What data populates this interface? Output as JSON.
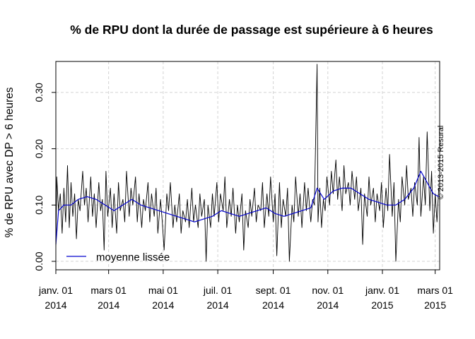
{
  "chart_data": {
    "type": "line",
    "title": "% de RPU dont la durée de passage est supérieure à 6 heures",
    "xlabel": "",
    "ylabel": "% de RPU avec DP > 6 heures",
    "x_range": [
      "2014-01-01",
      "2015-03-06"
    ],
    "ylim": [
      -0.015,
      0.355
    ],
    "y_ticks": [
      0.0,
      0.1,
      0.2,
      0.3
    ],
    "y_tick_labels": [
      "0.00",
      "0.10",
      "0.20",
      "0.30"
    ],
    "x_ticks": [
      {
        "date": "2014-01-01",
        "line1": "janv. 01",
        "line2": "2014"
      },
      {
        "date": "2014-03-01",
        "line1": "mars 01",
        "line2": "2014"
      },
      {
        "date": "2014-05-01",
        "line1": "mai 01",
        "line2": "2014"
      },
      {
        "date": "2014-07-01",
        "line1": "juil. 01",
        "line2": "2014"
      },
      {
        "date": "2014-09-01",
        "line1": "sept. 01",
        "line2": "2014"
      },
      {
        "date": "2014-11-01",
        "line1": "nov. 01",
        "line2": "2014"
      },
      {
        "date": "2015-01-01",
        "line1": "janv. 01",
        "line2": "2015"
      },
      {
        "date": "2015-03-01",
        "line1": "mars 01",
        "line2": "2015"
      }
    ],
    "grid": true,
    "legend_position": "bottom-left",
    "copyright": "© 2013-2015 Resural",
    "series": [
      {
        "key": "raw",
        "color": "#000000",
        "points": [
          [
            "2014-01-01",
            0.02
          ],
          [
            "2014-01-02",
            0.15
          ],
          [
            "2014-01-04",
            0.09
          ],
          [
            "2014-01-06",
            0.12
          ],
          [
            "2014-01-08",
            0.05
          ],
          [
            "2014-01-10",
            0.13
          ],
          [
            "2014-01-12",
            0.07
          ],
          [
            "2014-01-14",
            0.17
          ],
          [
            "2014-01-16",
            0.06
          ],
          [
            "2014-01-18",
            0.14
          ],
          [
            "2014-01-20",
            0.08
          ],
          [
            "2014-01-22",
            0.12
          ],
          [
            "2014-01-24",
            0.04
          ],
          [
            "2014-01-26",
            0.11
          ],
          [
            "2014-01-28",
            0.09
          ],
          [
            "2014-01-31",
            0.16
          ],
          [
            "2014-02-02",
            0.1
          ],
          [
            "2014-02-04",
            0.13
          ],
          [
            "2014-02-06",
            0.07
          ],
          [
            "2014-02-09",
            0.15
          ],
          [
            "2014-02-11",
            0.08
          ],
          [
            "2014-02-13",
            0.12
          ],
          [
            "2014-02-15",
            0.06
          ],
          [
            "2014-02-18",
            0.14
          ],
          [
            "2014-02-20",
            0.09
          ],
          [
            "2014-02-22",
            0.11
          ],
          [
            "2014-02-24",
            0.02
          ],
          [
            "2014-02-26",
            0.16
          ],
          [
            "2014-02-28",
            0.08
          ],
          [
            "2014-03-03",
            0.13
          ],
          [
            "2014-03-05",
            0.06
          ],
          [
            "2014-03-07",
            0.12
          ],
          [
            "2014-03-10",
            0.05
          ],
          [
            "2014-03-12",
            0.14
          ],
          [
            "2014-03-14",
            0.09
          ],
          [
            "2014-03-17",
            0.11
          ],
          [
            "2014-03-19",
            0.07
          ],
          [
            "2014-03-21",
            0.16
          ],
          [
            "2014-03-24",
            0.08
          ],
          [
            "2014-03-26",
            0.13
          ],
          [
            "2014-03-28",
            0.1
          ],
          [
            "2014-03-31",
            0.15
          ],
          [
            "2014-04-02",
            0.07
          ],
          [
            "2014-04-04",
            0.12
          ],
          [
            "2014-04-07",
            0.06
          ],
          [
            "2014-04-09",
            0.11
          ],
          [
            "2014-04-11",
            0.09
          ],
          [
            "2014-04-14",
            0.14
          ],
          [
            "2014-04-16",
            0.07
          ],
          [
            "2014-04-18",
            0.12
          ],
          [
            "2014-04-21",
            0.08
          ],
          [
            "2014-04-23",
            0.13
          ],
          [
            "2014-04-25",
            0.05
          ],
          [
            "2014-04-28",
            0.11
          ],
          [
            "2014-04-30",
            0.07
          ],
          [
            "2014-05-02",
            0.02
          ],
          [
            "2014-05-05",
            0.12
          ],
          [
            "2014-05-07",
            0.09
          ],
          [
            "2014-05-09",
            0.14
          ],
          [
            "2014-05-12",
            0.06
          ],
          [
            "2014-05-14",
            0.1
          ],
          [
            "2014-05-16",
            0.07
          ],
          [
            "2014-05-19",
            0.12
          ],
          [
            "2014-05-21",
            0.05
          ],
          [
            "2014-05-23",
            0.09
          ],
          [
            "2014-05-26",
            0.07
          ],
          [
            "2014-05-28",
            0.11
          ],
          [
            "2014-05-30",
            0.06
          ],
          [
            "2014-06-02",
            0.13
          ],
          [
            "2014-06-04",
            0.07
          ],
          [
            "2014-06-06",
            0.1
          ],
          [
            "2014-06-09",
            0.06
          ],
          [
            "2014-06-11",
            0.12
          ],
          [
            "2014-06-13",
            0.08
          ],
          [
            "2014-06-16",
            0.11
          ],
          [
            "2014-06-18",
            0.0
          ],
          [
            "2014-06-20",
            0.1
          ],
          [
            "2014-06-23",
            0.06
          ],
          [
            "2014-06-25",
            0.12
          ],
          [
            "2014-06-27",
            0.08
          ],
          [
            "2014-06-30",
            0.14
          ],
          [
            "2014-07-02",
            0.07
          ],
          [
            "2014-07-04",
            0.12
          ],
          [
            "2014-07-07",
            0.09
          ],
          [
            "2014-07-09",
            0.15
          ],
          [
            "2014-07-11",
            0.06
          ],
          [
            "2014-07-14",
            0.11
          ],
          [
            "2014-07-16",
            0.08
          ],
          [
            "2014-07-18",
            0.13
          ],
          [
            "2014-07-21",
            0.05
          ],
          [
            "2014-07-23",
            0.1
          ],
          [
            "2014-07-25",
            0.07
          ],
          [
            "2014-07-28",
            0.12
          ],
          [
            "2014-07-30",
            0.02
          ],
          [
            "2014-08-01",
            0.09
          ],
          [
            "2014-08-04",
            0.06
          ],
          [
            "2014-08-06",
            0.11
          ],
          [
            "2014-08-08",
            0.08
          ],
          [
            "2014-08-11",
            0.13
          ],
          [
            "2014-08-13",
            0.07
          ],
          [
            "2014-08-15",
            0.1
          ],
          [
            "2014-08-18",
            0.09
          ],
          [
            "2014-08-20",
            0.14
          ],
          [
            "2014-08-22",
            0.06
          ],
          [
            "2014-08-25",
            0.12
          ],
          [
            "2014-08-27",
            0.08
          ],
          [
            "2014-08-29",
            0.15
          ],
          [
            "2014-09-01",
            0.07
          ],
          [
            "2014-09-03",
            0.12
          ],
          [
            "2014-09-05",
            0.01
          ],
          [
            "2014-09-08",
            0.14
          ],
          [
            "2014-09-10",
            0.06
          ],
          [
            "2014-09-12",
            0.11
          ],
          [
            "2014-09-15",
            0.08
          ],
          [
            "2014-09-17",
            0.13
          ],
          [
            "2014-09-19",
            0.0
          ],
          [
            "2014-09-22",
            0.1
          ],
          [
            "2014-09-24",
            0.07
          ],
          [
            "2014-09-26",
            0.15
          ],
          [
            "2014-09-29",
            0.08
          ],
          [
            "2014-10-01",
            0.12
          ],
          [
            "2014-10-03",
            0.06
          ],
          [
            "2014-10-06",
            0.14
          ],
          [
            "2014-10-08",
            0.09
          ],
          [
            "2014-10-10",
            0.13
          ],
          [
            "2014-10-13",
            0.07
          ],
          [
            "2014-10-15",
            0.11
          ],
          [
            "2014-10-17",
            0.1
          ],
          [
            "2014-10-20",
            0.35
          ],
          [
            "2014-10-21",
            0.07
          ],
          [
            "2014-10-23",
            0.13
          ],
          [
            "2014-10-25",
            0.06
          ],
          [
            "2014-10-27",
            0.11
          ],
          [
            "2014-10-29",
            0.09
          ],
          [
            "2014-10-31",
            0.15
          ],
          [
            "2014-11-03",
            0.1
          ],
          [
            "2014-11-05",
            0.16
          ],
          [
            "2014-11-07",
            0.12
          ],
          [
            "2014-11-10",
            0.18
          ],
          [
            "2014-11-12",
            0.11
          ],
          [
            "2014-11-14",
            0.15
          ],
          [
            "2014-11-17",
            0.09
          ],
          [
            "2014-11-19",
            0.17
          ],
          [
            "2014-11-21",
            0.12
          ],
          [
            "2014-11-24",
            0.14
          ],
          [
            "2014-11-26",
            0.1
          ],
          [
            "2014-11-28",
            0.16
          ],
          [
            "2014-12-01",
            0.11
          ],
          [
            "2014-12-03",
            0.15
          ],
          [
            "2014-12-05",
            0.09
          ],
          [
            "2014-12-08",
            0.13
          ],
          [
            "2014-12-10",
            0.03
          ],
          [
            "2014-12-12",
            0.12
          ],
          [
            "2014-12-15",
            0.08
          ],
          [
            "2014-12-17",
            0.15
          ],
          [
            "2014-12-19",
            0.1
          ],
          [
            "2014-12-22",
            0.13
          ],
          [
            "2014-12-24",
            0.07
          ],
          [
            "2014-12-26",
            0.12
          ],
          [
            "2014-12-29",
            0.09
          ],
          [
            "2014-12-31",
            0.14
          ],
          [
            "2015-01-02",
            0.06
          ],
          [
            "2015-01-05",
            0.13
          ],
          [
            "2015-01-07",
            0.09
          ],
          [
            "2015-01-09",
            0.19
          ],
          [
            "2015-01-12",
            0.08
          ],
          [
            "2015-01-14",
            0.14
          ],
          [
            "2015-01-16",
            0.0
          ],
          [
            "2015-01-19",
            0.11
          ],
          [
            "2015-01-21",
            0.07
          ],
          [
            "2015-01-23",
            0.15
          ],
          [
            "2015-01-26",
            0.1
          ],
          [
            "2015-01-28",
            0.17
          ],
          [
            "2015-01-30",
            0.11
          ],
          [
            "2015-02-02",
            0.13
          ],
          [
            "2015-02-04",
            0.08
          ],
          [
            "2015-02-06",
            0.14
          ],
          [
            "2015-02-09",
            0.1
          ],
          [
            "2015-02-11",
            0.22
          ],
          [
            "2015-02-13",
            0.08
          ],
          [
            "2015-02-16",
            0.15
          ],
          [
            "2015-02-18",
            0.1
          ],
          [
            "2015-02-20",
            0.23
          ],
          [
            "2015-02-23",
            0.09
          ],
          [
            "2015-02-25",
            0.16
          ],
          [
            "2015-02-27",
            0.05
          ],
          [
            "2015-03-01",
            0.12
          ],
          [
            "2015-03-03",
            0.07
          ],
          [
            "2015-03-05",
            0.13
          ]
        ]
      },
      {
        "key": "smooth",
        "name": "moyenne lissée",
        "color": "#0000cd",
        "points": [
          [
            "2014-01-01",
            0.03
          ],
          [
            "2014-01-04",
            0.09
          ],
          [
            "2014-01-10",
            0.1
          ],
          [
            "2014-01-18",
            0.1
          ],
          [
            "2014-01-26",
            0.11
          ],
          [
            "2014-02-05",
            0.115
          ],
          [
            "2014-02-15",
            0.11
          ],
          [
            "2014-02-25",
            0.1
          ],
          [
            "2014-03-07",
            0.09
          ],
          [
            "2014-03-17",
            0.1
          ],
          [
            "2014-03-27",
            0.11
          ],
          [
            "2014-04-06",
            0.1
          ],
          [
            "2014-04-16",
            0.095
          ],
          [
            "2014-04-26",
            0.09
          ],
          [
            "2014-05-06",
            0.085
          ],
          [
            "2014-05-16",
            0.08
          ],
          [
            "2014-05-26",
            0.075
          ],
          [
            "2014-06-05",
            0.07
          ],
          [
            "2014-06-15",
            0.075
          ],
          [
            "2014-06-25",
            0.08
          ],
          [
            "2014-07-05",
            0.09
          ],
          [
            "2014-07-15",
            0.085
          ],
          [
            "2014-07-25",
            0.08
          ],
          [
            "2014-08-04",
            0.085
          ],
          [
            "2014-08-14",
            0.09
          ],
          [
            "2014-08-24",
            0.095
          ],
          [
            "2014-09-03",
            0.085
          ],
          [
            "2014-09-13",
            0.08
          ],
          [
            "2014-09-23",
            0.085
          ],
          [
            "2014-10-03",
            0.09
          ],
          [
            "2014-10-13",
            0.095
          ],
          [
            "2014-10-20",
            0.13
          ],
          [
            "2014-10-28",
            0.11
          ],
          [
            "2014-11-07",
            0.125
          ],
          [
            "2014-11-17",
            0.13
          ],
          [
            "2014-11-27",
            0.13
          ],
          [
            "2014-12-07",
            0.12
          ],
          [
            "2014-12-17",
            0.11
          ],
          [
            "2014-12-27",
            0.105
          ],
          [
            "2015-01-06",
            0.1
          ],
          [
            "2015-01-16",
            0.1
          ],
          [
            "2015-01-26",
            0.11
          ],
          [
            "2015-02-05",
            0.13
          ],
          [
            "2015-02-13",
            0.16
          ],
          [
            "2015-02-20",
            0.14
          ],
          [
            "2015-02-27",
            0.12
          ],
          [
            "2015-03-05",
            0.115
          ]
        ]
      }
    ]
  }
}
